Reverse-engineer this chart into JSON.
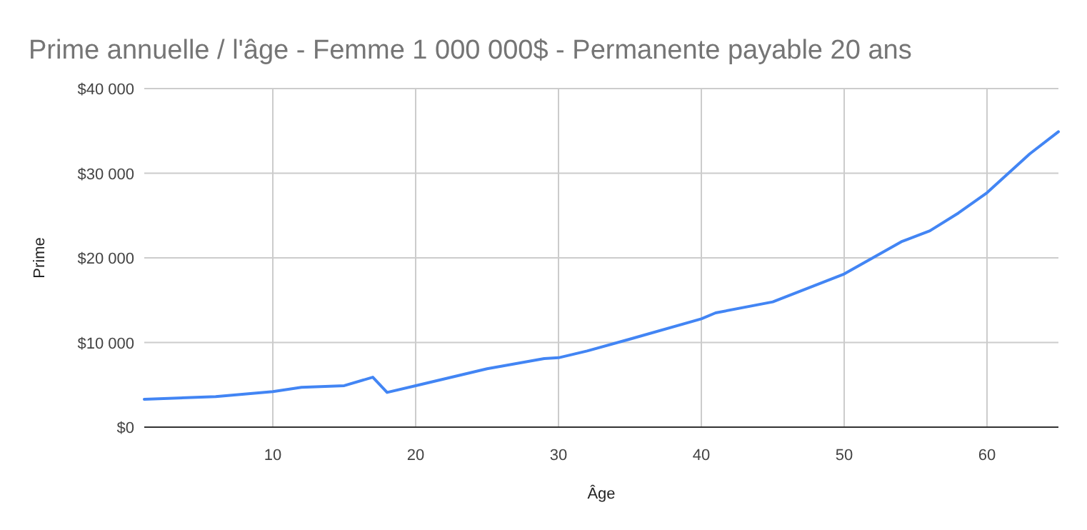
{
  "chart_data": {
    "type": "line",
    "title": "Prime annuelle / l'âge - Femme 1 000 000$ - Permanente payable 20 ans",
    "xlabel": "Âge",
    "ylabel": "Prime",
    "x": [
      1,
      6,
      10,
      12,
      15,
      17,
      18,
      20,
      25,
      29,
      30,
      32,
      35,
      40,
      41,
      45,
      50,
      54,
      56,
      58,
      60,
      63,
      65
    ],
    "series": [
      {
        "color": "#4285f4",
        "values": [
          3300,
          3600,
          4200,
          4700,
          4900,
          5900,
          4100,
          4900,
          6900,
          8100,
          8200,
          9000,
          10400,
          12800,
          13500,
          14800,
          18100,
          21900,
          23200,
          25300,
          27700,
          32300,
          34900
        ]
      }
    ],
    "xlim": [
      1,
      65
    ],
    "xticks": [
      10,
      20,
      30,
      40,
      50,
      60
    ],
    "ylim": [
      0,
      40000
    ],
    "yticks": [
      {
        "value": 0,
        "label": "$0"
      },
      {
        "value": 10000,
        "label": "$10 000"
      },
      {
        "value": 20000,
        "label": "$20 000"
      },
      {
        "value": 30000,
        "label": "$30 000"
      },
      {
        "value": 40000,
        "label": "$40 000"
      }
    ],
    "grid": true,
    "marker": "none",
    "line_style": "solid"
  }
}
